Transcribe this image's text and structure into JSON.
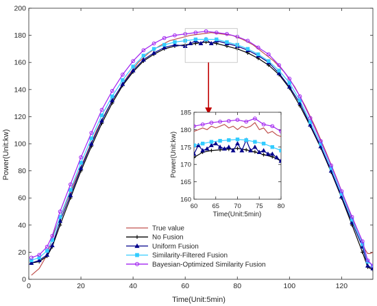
{
  "chart_data": [
    {
      "type": "line",
      "id": "main",
      "title": "",
      "xlabel": "Time(Unit:5min)",
      "ylabel": "Power(Unit:kw)",
      "xlim": [
        0,
        132
      ],
      "ylim": [
        0,
        200
      ],
      "xticks": [
        0,
        20,
        40,
        60,
        80,
        100,
        120
      ],
      "yticks": [
        0,
        20,
        40,
        60,
        80,
        100,
        120,
        140,
        160,
        180,
        200
      ],
      "grid": false,
      "legend_position": "bottom-center",
      "series": [
        {
          "name": "True value",
          "color": "#c0504d",
          "marker": "none",
          "points": [
            [
              1,
              3
            ],
            [
              4,
              8
            ],
            [
              7,
              18
            ],
            [
              10,
              36
            ],
            [
              14,
              55
            ],
            [
              18,
              74
            ],
            [
              22,
              92
            ],
            [
              26,
              110
            ],
            [
              30,
              125
            ],
            [
              34,
              138
            ],
            [
              38,
              150
            ],
            [
              42,
              160
            ],
            [
              46,
              167
            ],
            [
              50,
              172
            ],
            [
              54,
              176
            ],
            [
              58,
              178
            ],
            [
              62,
              180
            ],
            [
              66,
              181
            ],
            [
              70,
              182
            ],
            [
              74,
              181
            ],
            [
              78,
              180
            ],
            [
              82,
              177
            ],
            [
              86,
              173
            ],
            [
              90,
              167
            ],
            [
              94,
              161
            ],
            [
              98,
              153
            ],
            [
              102,
              142
            ],
            [
              106,
              128
            ],
            [
              110,
              112
            ],
            [
              114,
              94
            ],
            [
              118,
              75
            ],
            [
              122,
              55
            ],
            [
              126,
              35
            ],
            [
              129,
              22
            ],
            [
              130,
              19
            ],
            [
              131,
              19
            ],
            [
              132,
              20
            ]
          ]
        },
        {
          "name": "No Fusion",
          "color": "#000000",
          "marker": "plus",
          "points": [
            [
              1,
              12
            ],
            [
              4,
              13
            ],
            [
              7,
              17
            ],
            [
              9,
              24
            ],
            [
              12,
              40
            ],
            [
              16,
              60
            ],
            [
              20,
              80
            ],
            [
              24,
              98
            ],
            [
              28,
              115
            ],
            [
              32,
              130
            ],
            [
              36,
              143
            ],
            [
              40,
              153
            ],
            [
              44,
              161
            ],
            [
              48,
              166
            ],
            [
              52,
              170
            ],
            [
              56,
              172
            ],
            [
              60,
              173
            ],
            [
              64,
              174
            ],
            [
              68,
              175
            ],
            [
              72,
              174
            ],
            [
              76,
              172
            ],
            [
              80,
              170
            ],
            [
              84,
              167
            ],
            [
              88,
              163
            ],
            [
              92,
              158
            ],
            [
              96,
              151
            ],
            [
              100,
              141
            ],
            [
              104,
              128
            ],
            [
              108,
              113
            ],
            [
              112,
              97
            ],
            [
              116,
              79
            ],
            [
              120,
              60
            ],
            [
              124,
              40
            ],
            [
              128,
              20
            ],
            [
              130,
              9
            ],
            [
              132,
              7
            ]
          ]
        },
        {
          "name": "Uniform Fusion",
          "color": "#00008b",
          "marker": "triangle",
          "points": [
            [
              1,
              12
            ],
            [
              4,
              14
            ],
            [
              7,
              18
            ],
            [
              9,
              25
            ],
            [
              12,
              43
            ],
            [
              16,
              62
            ],
            [
              20,
              82
            ],
            [
              24,
              100
            ],
            [
              28,
              117
            ],
            [
              32,
              132
            ],
            [
              36,
              144
            ],
            [
              40,
              154
            ],
            [
              44,
              162
            ],
            [
              48,
              167
            ],
            [
              52,
              171
            ],
            [
              56,
              173
            ],
            [
              60,
              172
            ],
            [
              62,
              174
            ],
            [
              64,
              176
            ],
            [
              66,
              174
            ],
            [
              68,
              177
            ],
            [
              70,
              174
            ],
            [
              72,
              176
            ],
            [
              76,
              174
            ],
            [
              80,
              172
            ],
            [
              84,
              169
            ],
            [
              88,
              165
            ],
            [
              92,
              160
            ],
            [
              96,
              152
            ],
            [
              100,
              142
            ],
            [
              104,
              130
            ],
            [
              108,
              114
            ],
            [
              112,
              98
            ],
            [
              116,
              80
            ],
            [
              120,
              61
            ],
            [
              124,
              42
            ],
            [
              128,
              24
            ],
            [
              130,
              10
            ],
            [
              132,
              8
            ]
          ]
        },
        {
          "name": "Similarity-Filtered Fusion",
          "color": "#33ccff",
          "marker": "square",
          "points": [
            [
              1,
              14
            ],
            [
              4,
              16
            ],
            [
              7,
              21
            ],
            [
              9,
              29
            ],
            [
              12,
              46
            ],
            [
              16,
              66
            ],
            [
              20,
              86
            ],
            [
              24,
              104
            ],
            [
              28,
              121
            ],
            [
              32,
              135
            ],
            [
              36,
              147
            ],
            [
              40,
              157
            ],
            [
              44,
              165
            ],
            [
              48,
              170
            ],
            [
              52,
              173
            ],
            [
              56,
              175
            ],
            [
              60,
              176
            ],
            [
              64,
              177
            ],
            [
              68,
              177
            ],
            [
              72,
              177
            ],
            [
              76,
              175
            ],
            [
              80,
              173
            ],
            [
              84,
              170
            ],
            [
              88,
              166
            ],
            [
              92,
              161
            ],
            [
              96,
              154
            ],
            [
              100,
              145
            ],
            [
              104,
              132
            ],
            [
              108,
              116
            ],
            [
              112,
              100
            ],
            [
              116,
              82
            ],
            [
              120,
              63
            ],
            [
              124,
              44
            ],
            [
              128,
              26
            ],
            [
              130,
              13
            ],
            [
              132,
              10
            ]
          ]
        },
        {
          "name": "Bayesian-Optimized Similarity Fusion",
          "color": "#a020f0",
          "marker": "circle",
          "points": [
            [
              1,
              16
            ],
            [
              4,
              18
            ],
            [
              7,
              24
            ],
            [
              9,
              32
            ],
            [
              12,
              50
            ],
            [
              16,
              70
            ],
            [
              20,
              90
            ],
            [
              24,
              108
            ],
            [
              28,
              125
            ],
            [
              32,
              139
            ],
            [
              36,
              151
            ],
            [
              40,
              161
            ],
            [
              44,
              169
            ],
            [
              48,
              174
            ],
            [
              52,
              178
            ],
            [
              56,
              180
            ],
            [
              60,
              181
            ],
            [
              64,
              182
            ],
            [
              68,
              183
            ],
            [
              72,
              182
            ],
            [
              76,
              181
            ],
            [
              80,
              179
            ],
            [
              84,
              176
            ],
            [
              88,
              171
            ],
            [
              92,
              166
            ],
            [
              96,
              158
            ],
            [
              100,
              148
            ],
            [
              104,
              135
            ],
            [
              108,
              119
            ],
            [
              112,
              102
            ],
            [
              116,
              84
            ],
            [
              120,
              65
            ],
            [
              124,
              46
            ],
            [
              128,
              28
            ],
            [
              130,
              14
            ],
            [
              132,
              10
            ]
          ]
        }
      ]
    },
    {
      "type": "line",
      "id": "inset",
      "title": "",
      "xlabel": "Time(Unit:5min)",
      "ylabel": "Power(Unit:kw)",
      "xlim": [
        60,
        80
      ],
      "ylim": [
        160,
        185
      ],
      "xticks": [
        60,
        65,
        70,
        75,
        80
      ],
      "yticks": [
        160,
        165,
        170,
        175,
        180,
        185
      ],
      "grid": false,
      "series": [
        {
          "name": "True value",
          "color": "#c0504d",
          "marker": "none",
          "points": [
            [
              60,
              179.5
            ],
            [
              61,
              180
            ],
            [
              62,
              180.5
            ],
            [
              63,
              180
            ],
            [
              64,
              181
            ],
            [
              65,
              180.5
            ],
            [
              66,
              181
            ],
            [
              67,
              181.5
            ],
            [
              68,
              180.5
            ],
            [
              69,
              181
            ],
            [
              70,
              180
            ],
            [
              71,
              181
            ],
            [
              72,
              180.5
            ],
            [
              73,
              181
            ],
            [
              74,
              182
            ],
            [
              75,
              180
            ],
            [
              76,
              180.5
            ],
            [
              77,
              179
            ],
            [
              78,
              179.5
            ],
            [
              79,
              178.5
            ],
            [
              80,
              178
            ]
          ]
        },
        {
          "name": "No Fusion",
          "color": "#000000",
          "marker": "plus",
          "points": [
            [
              60,
              172
            ],
            [
              62,
              173.5
            ],
            [
              64,
              174
            ],
            [
              66,
              174.2
            ],
            [
              68,
              174.4
            ],
            [
              70,
              174.6
            ],
            [
              72,
              174.2
            ],
            [
              74,
              173.6
            ],
            [
              76,
              172.8
            ],
            [
              78,
              172.2
            ],
            [
              80,
              171
            ]
          ]
        },
        {
          "name": "Uniform Fusion",
          "color": "#00008b",
          "marker": "triangle",
          "points": [
            [
              60,
              173
            ],
            [
              61,
              175.5
            ],
            [
              62,
              174
            ],
            [
              63,
              174.5
            ],
            [
              64,
              175.5
            ],
            [
              65,
              176
            ],
            [
              66,
              175
            ],
            [
              67,
              174.5
            ],
            [
              68,
              175
            ],
            [
              69,
              174
            ],
            [
              70,
              176
            ],
            [
              71,
              174
            ],
            [
              72,
              177
            ],
            [
              73,
              174
            ],
            [
              74,
              175
            ],
            [
              75,
              173.5
            ],
            [
              76,
              174
            ],
            [
              77,
              173
            ],
            [
              78,
              173
            ],
            [
              79,
              172
            ],
            [
              80,
              171
            ]
          ]
        },
        {
          "name": "Similarity-Filtered Fusion",
          "color": "#33ccff",
          "marker": "square",
          "points": [
            [
              60,
              175.5
            ],
            [
              62,
              176
            ],
            [
              64,
              176.5
            ],
            [
              66,
              176.8
            ],
            [
              68,
              177
            ],
            [
              70,
              177.2
            ],
            [
              72,
              177
            ],
            [
              74,
              176.5
            ],
            [
              76,
              176
            ],
            [
              78,
              175
            ],
            [
              80,
              174
            ]
          ]
        },
        {
          "name": "Bayesian-Optimized Similarity Fusion",
          "color": "#a020f0",
          "marker": "circle",
          "points": [
            [
              60,
              181
            ],
            [
              62,
              181.5
            ],
            [
              64,
              182
            ],
            [
              66,
              182.3
            ],
            [
              68,
              182.5
            ],
            [
              70,
              182.8
            ],
            [
              72,
              182.3
            ],
            [
              74,
              183.2
            ],
            [
              76,
              181.5
            ],
            [
              78,
              181
            ],
            [
              80,
              179.5
            ]
          ]
        }
      ]
    }
  ],
  "zoom_box": {
    "x_range": [
      60,
      80
    ],
    "y_range": [
      160,
      185
    ],
    "arrow_color": "#c00000"
  }
}
